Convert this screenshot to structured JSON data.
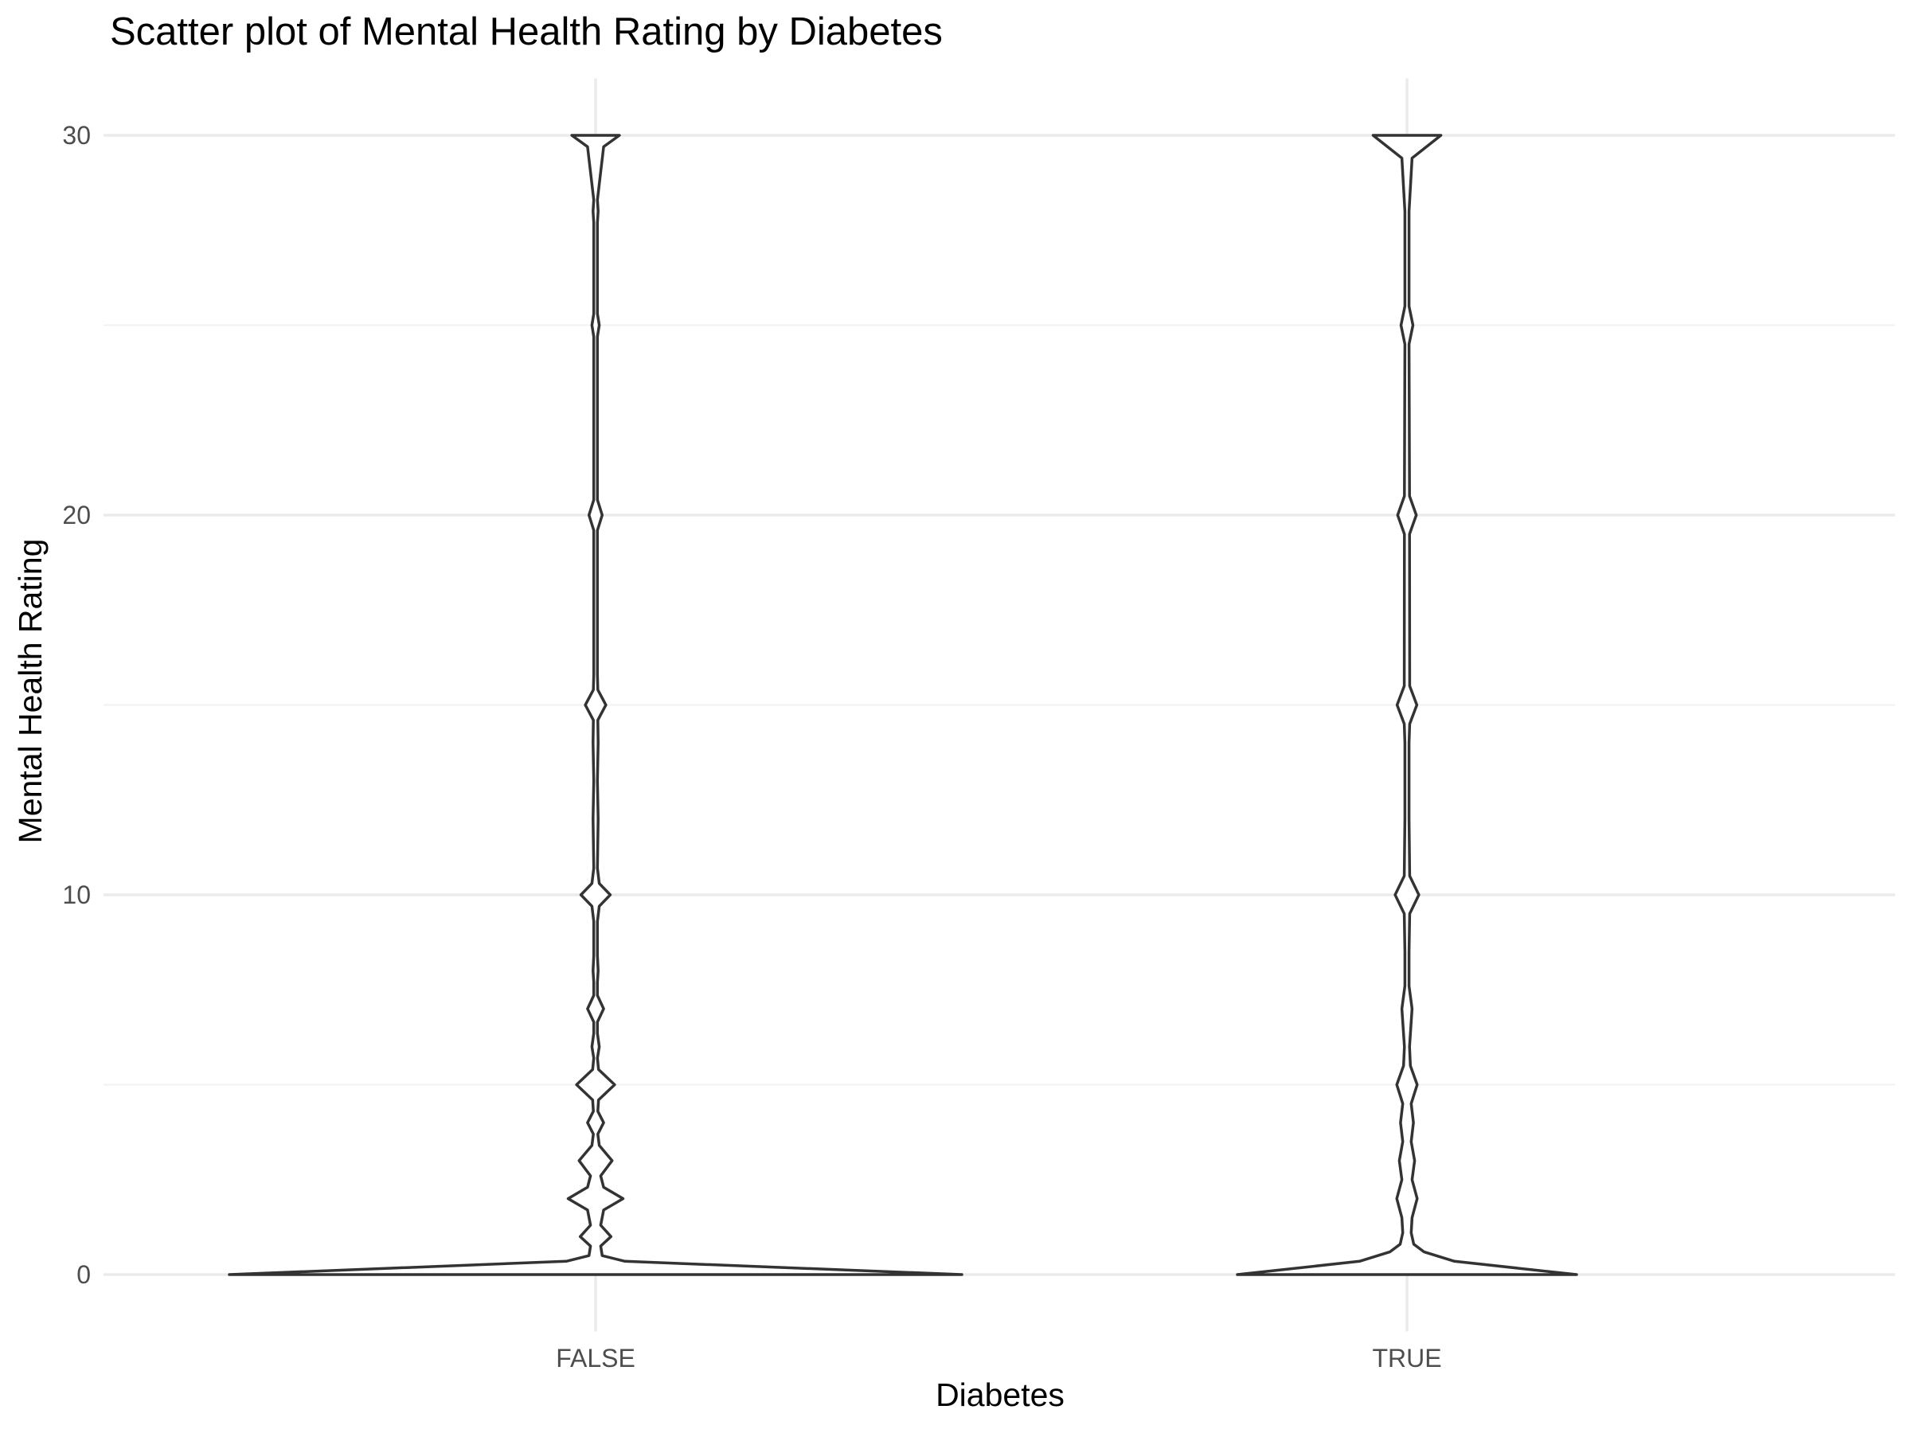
{
  "chart_data": {
    "type": "violin",
    "title": "Scatter plot of Mental Health Rating by Diabetes",
    "xlabel": "Diabetes",
    "ylabel": "Mental Health Rating",
    "categories": [
      "FALSE",
      "TRUE"
    ],
    "ylim": [
      -1.5,
      31.5
    ],
    "yticks": [
      0,
      10,
      20,
      30
    ],
    "grid": true,
    "legend": "none",
    "colors": {
      "outline": "#333333",
      "major_grid": "#ebebeb",
      "minor_grid": "#f2f2f2",
      "tick_text": "#4d4d4d",
      "title_text": "#000000"
    },
    "series": [
      {
        "category": "FALSE",
        "density_profile": [
          [
            0,
            1.0
          ],
          [
            0.35,
            0.08
          ],
          [
            0.5,
            0.018
          ],
          [
            0.75,
            0.014
          ],
          [
            1,
            0.042
          ],
          [
            1.3,
            0.014
          ],
          [
            1.7,
            0.022
          ],
          [
            2,
            0.075
          ],
          [
            2.3,
            0.022
          ],
          [
            2.6,
            0.014
          ],
          [
            3,
            0.045
          ],
          [
            3.4,
            0.01
          ],
          [
            3.7,
            0.006
          ],
          [
            4,
            0.022
          ],
          [
            4.3,
            0.006
          ],
          [
            4.6,
            0.008
          ],
          [
            5,
            0.052
          ],
          [
            5.4,
            0.008
          ],
          [
            5.7,
            0.005
          ],
          [
            6,
            0.01
          ],
          [
            6.35,
            0.005
          ],
          [
            6.65,
            0.005
          ],
          [
            7,
            0.022
          ],
          [
            7.35,
            0.005
          ],
          [
            7.7,
            0.005
          ],
          [
            8,
            0.007
          ],
          [
            8.4,
            0.005
          ],
          [
            9.3,
            0.005
          ],
          [
            9.7,
            0.01
          ],
          [
            10,
            0.04
          ],
          [
            10.3,
            0.01
          ],
          [
            10.7,
            0.005
          ],
          [
            12,
            0.007
          ],
          [
            13,
            0.005
          ],
          [
            14,
            0.007
          ],
          [
            14.6,
            0.006
          ],
          [
            15,
            0.028
          ],
          [
            15.4,
            0.006
          ],
          [
            15.8,
            0.005
          ],
          [
            19.6,
            0.005
          ],
          [
            20,
            0.018
          ],
          [
            20.4,
            0.005
          ],
          [
            24.7,
            0.005
          ],
          [
            25,
            0.01
          ],
          [
            25.3,
            0.005
          ],
          [
            27.7,
            0.005
          ],
          [
            28,
            0.007
          ],
          [
            28.3,
            0.005
          ],
          [
            29.7,
            0.022
          ],
          [
            30,
            0.065
          ]
        ]
      },
      {
        "category": "TRUE",
        "density_profile": [
          [
            0,
            1.0
          ],
          [
            0.35,
            0.28
          ],
          [
            0.6,
            0.1
          ],
          [
            0.8,
            0.04
          ],
          [
            1.1,
            0.025
          ],
          [
            1.5,
            0.03
          ],
          [
            2,
            0.06
          ],
          [
            2.5,
            0.03
          ],
          [
            3,
            0.045
          ],
          [
            3.5,
            0.025
          ],
          [
            4,
            0.038
          ],
          [
            4.5,
            0.025
          ],
          [
            5,
            0.06
          ],
          [
            5.5,
            0.02
          ],
          [
            6,
            0.015
          ],
          [
            7,
            0.03
          ],
          [
            7.6,
            0.012
          ],
          [
            8.5,
            0.012
          ],
          [
            9.5,
            0.016
          ],
          [
            10,
            0.07
          ],
          [
            10.5,
            0.016
          ],
          [
            12,
            0.012
          ],
          [
            14,
            0.012
          ],
          [
            14.5,
            0.016
          ],
          [
            15,
            0.058
          ],
          [
            15.5,
            0.016
          ],
          [
            19.5,
            0.015
          ],
          [
            20,
            0.055
          ],
          [
            20.5,
            0.015
          ],
          [
            24.5,
            0.012
          ],
          [
            25,
            0.035
          ],
          [
            25.5,
            0.012
          ],
          [
            28,
            0.012
          ],
          [
            29.4,
            0.03
          ],
          [
            30,
            0.2
          ]
        ]
      }
    ]
  }
}
